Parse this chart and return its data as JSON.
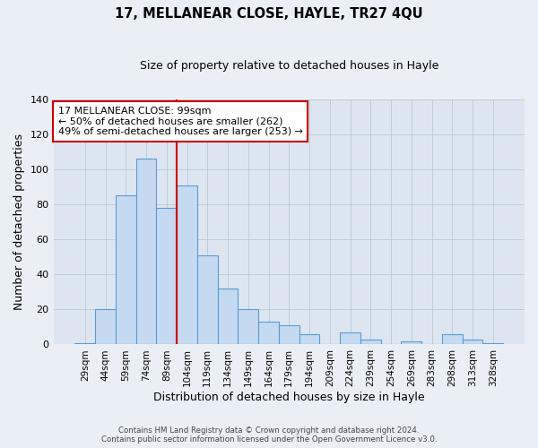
{
  "title": "17, MELLANEAR CLOSE, HAYLE, TR27 4QU",
  "subtitle": "Size of property relative to detached houses in Hayle",
  "xlabel": "Distribution of detached houses by size in Hayle",
  "ylabel": "Number of detached properties",
  "bar_labels": [
    "29sqm",
    "44sqm",
    "59sqm",
    "74sqm",
    "89sqm",
    "104sqm",
    "119sqm",
    "134sqm",
    "149sqm",
    "164sqm",
    "179sqm",
    "194sqm",
    "209sqm",
    "224sqm",
    "239sqm",
    "254sqm",
    "269sqm",
    "283sqm",
    "298sqm",
    "313sqm",
    "328sqm"
  ],
  "bar_values": [
    1,
    20,
    85,
    106,
    78,
    91,
    51,
    32,
    20,
    13,
    11,
    6,
    0,
    7,
    3,
    0,
    2,
    0,
    6,
    3,
    1
  ],
  "bar_color": "#c5d9f0",
  "bar_edge_color": "#5b9bd5",
  "ylim": [
    0,
    140
  ],
  "yticks": [
    0,
    20,
    40,
    60,
    80,
    100,
    120,
    140
  ],
  "vline_x": 4.5,
  "vline_color": "#cc0000",
  "annotation_title": "17 MELLANEAR CLOSE: 99sqm",
  "annotation_line1": "← 50% of detached houses are smaller (262)",
  "annotation_line2": "49% of semi-detached houses are larger (253) →",
  "annotation_box_color": "#cc0000",
  "footer_line1": "Contains HM Land Registry data © Crown copyright and database right 2024.",
  "footer_line2": "Contains public sector information licensed under the Open Government Licence v3.0.",
  "bg_color": "#eaeff5",
  "plot_bg_color": "#dde6f0"
}
